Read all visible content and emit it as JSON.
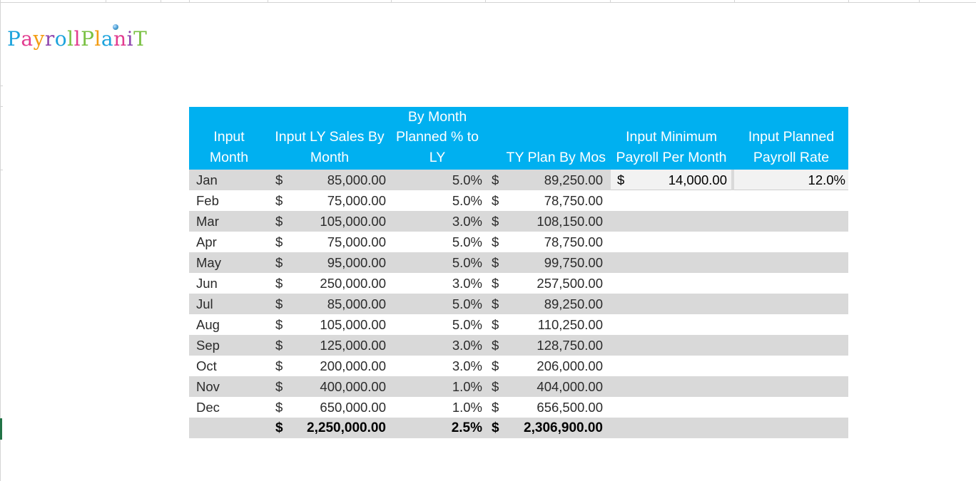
{
  "logo": {
    "letters": [
      {
        "ch": "P",
        "color": "#1ca3dc"
      },
      {
        "ch": "a",
        "color": "#e23b8f"
      },
      {
        "ch": "y",
        "color": "#f39c12"
      },
      {
        "ch": "r",
        "color": "#8e44ad"
      },
      {
        "ch": "o",
        "color": "#1ca3dc"
      },
      {
        "ch": "l",
        "color": "#7ac143"
      },
      {
        "ch": "l",
        "color": "#e23b8f"
      },
      {
        "ch": "P",
        "color": "#7ac143"
      },
      {
        "ch": "l",
        "color": "#f39c12"
      },
      {
        "ch": "a",
        "color": "#1ca3dc"
      },
      {
        "ch": "n",
        "color": "#e23b8f"
      },
      {
        "ch": "i",
        "color": "#8e44ad"
      },
      {
        "ch": "T",
        "color": "#7ac143"
      }
    ]
  },
  "colors": {
    "header_bg": "#00b0f0",
    "header_text": "#ffffff",
    "band": "#d9d9d9",
    "input_cell": "#f2f2f2"
  },
  "headers": {
    "month": [
      "Input",
      "Month"
    ],
    "ly": [
      "Input LY Sales By",
      "Month"
    ],
    "pct": [
      "By Month",
      "Planned % to",
      "LY"
    ],
    "ty": [
      "TY Plan By Mos"
    ],
    "minpay": [
      "Input Minimum",
      "Payroll Per Month"
    ],
    "rate": [
      "Input Planned",
      "Payroll Rate"
    ]
  },
  "rows": [
    {
      "month": "Jan",
      "d1": "$",
      "ly": "85,000.00",
      "pct": "5.0%",
      "d2": "$",
      "ty": "89,250.00",
      "d3": "$",
      "min": "14,000.00",
      "rate": "12.0%"
    },
    {
      "month": "Feb",
      "d1": "$",
      "ly": "75,000.00",
      "pct": "5.0%",
      "d2": "$",
      "ty": "78,750.00"
    },
    {
      "month": "Mar",
      "d1": "$",
      "ly": "105,000.00",
      "pct": "3.0%",
      "d2": "$",
      "ty": "108,150.00"
    },
    {
      "month": "Apr",
      "d1": "$",
      "ly": "75,000.00",
      "pct": "5.0%",
      "d2": "$",
      "ty": "78,750.00"
    },
    {
      "month": "May",
      "d1": "$",
      "ly": "95,000.00",
      "pct": "5.0%",
      "d2": "$",
      "ty": "99,750.00"
    },
    {
      "month": "Jun",
      "d1": "$",
      "ly": "250,000.00",
      "pct": "3.0%",
      "d2": "$",
      "ty": "257,500.00"
    },
    {
      "month": "Jul",
      "d1": "$",
      "ly": "85,000.00",
      "pct": "5.0%",
      "d2": "$",
      "ty": "89,250.00"
    },
    {
      "month": "Aug",
      "d1": "$",
      "ly": "105,000.00",
      "pct": "5.0%",
      "d2": "$",
      "ty": "110,250.00"
    },
    {
      "month": "Sep",
      "d1": "$",
      "ly": "125,000.00",
      "pct": "3.0%",
      "d2": "$",
      "ty": "128,750.00"
    },
    {
      "month": "Oct",
      "d1": "$",
      "ly": "200,000.00",
      "pct": "3.0%",
      "d2": "$",
      "ty": "206,000.00"
    },
    {
      "month": "Nov",
      "d1": "$",
      "ly": "400,000.00",
      "pct": "1.0%",
      "d2": "$",
      "ty": "404,000.00"
    },
    {
      "month": "Dec",
      "d1": "$",
      "ly": "650,000.00",
      "pct": "1.0%",
      "d2": "$",
      "ty": "656,500.00"
    }
  ],
  "total": {
    "d1": "$",
    "ly": "2,250,000.00",
    "pct": "2.5%",
    "d2": "$",
    "ty": "2,306,900.00"
  }
}
